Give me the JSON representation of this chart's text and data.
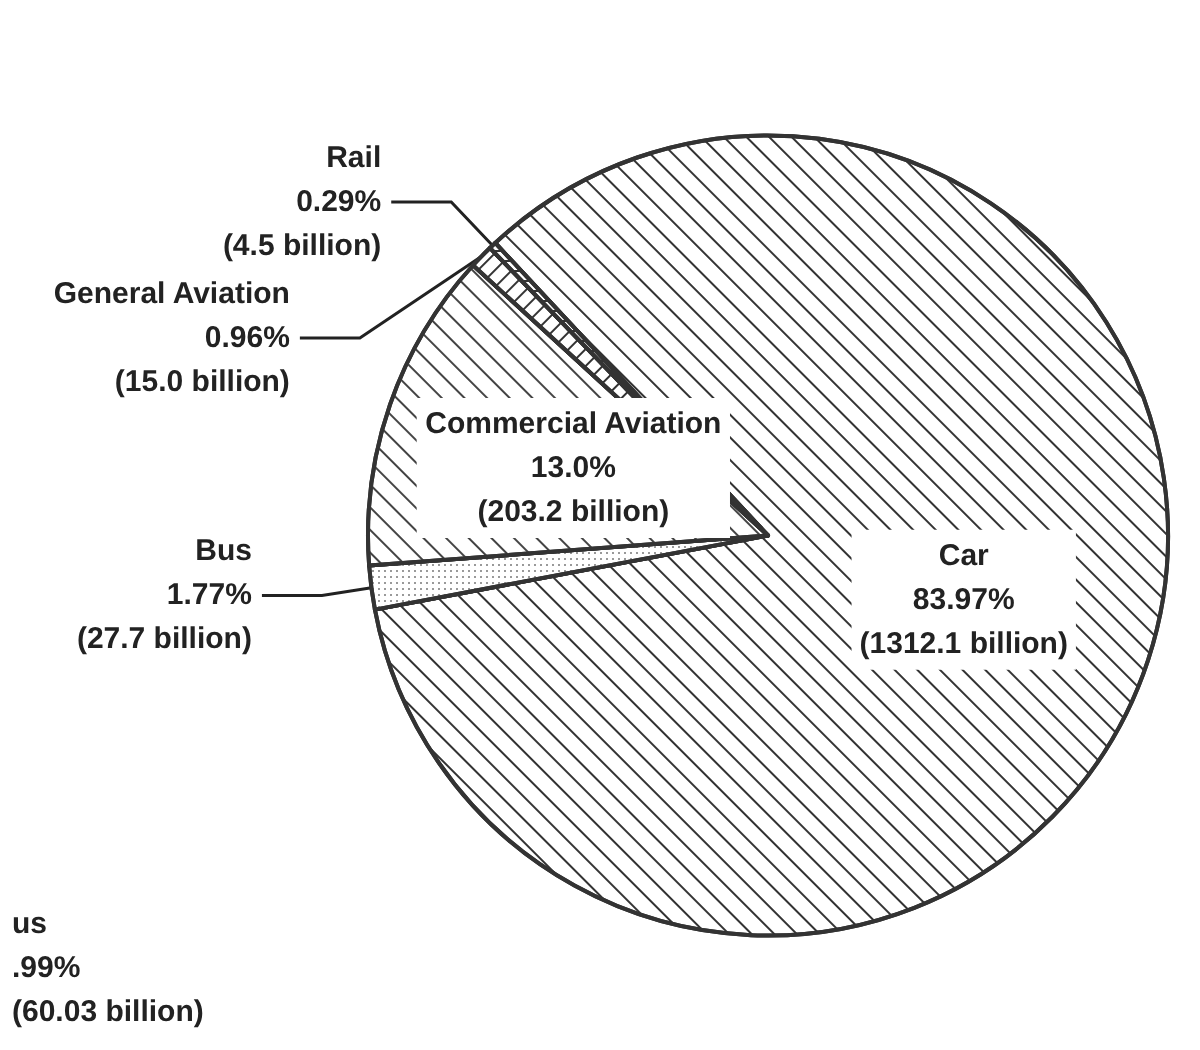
{
  "chart_data": {
    "type": "pie",
    "categories": [
      "Car",
      "Bus",
      "Commercial Aviation",
      "General Aviation",
      "Rail"
    ],
    "values": [
      83.97,
      1.77,
      13.0,
      0.96,
      0.29
    ],
    "value_labels": [
      "83.97%\n(1312.1 billion)",
      "1.77%\n(27.7 billion)",
      "13.0%\n(203.2 billion)",
      "0.96%\n(15.0 billion)",
      "0.29%\n(4.5 billion)"
    ],
    "colors": [
      "#ffffff",
      "#ffffff",
      "#ffffff",
      "#ffffff",
      "#ffffff"
    ],
    "annotations": [
      "us\n.99%\n(60.03 billion)"
    ],
    "legend": false
  }
}
